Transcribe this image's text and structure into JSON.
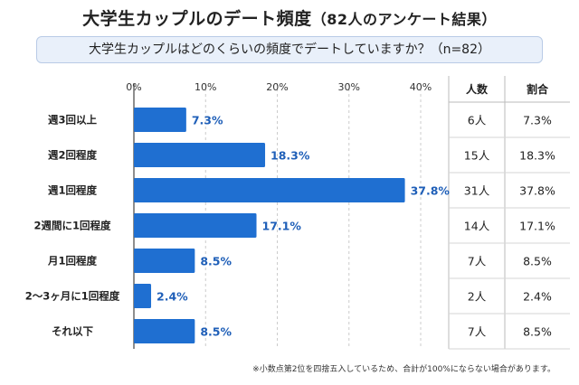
{
  "header": {
    "title": "大学生カップルのデート頻度",
    "subtitle": "（82人のアンケート結果）",
    "question": "大学生カップルはどのくらいの頻度でデートしていますか？（n=82）"
  },
  "table": {
    "col_count": "人数",
    "col_ratio": "割合"
  },
  "footnote": "※小数点第2位を四捨五入しているため、合計が100%にならない場合があります。",
  "colors": {
    "bar": "#1f6fd1",
    "label": "#1f5fb8",
    "grid": "#cccccc"
  },
  "chart_data": {
    "type": "bar",
    "orientation": "horizontal",
    "categories": [
      "週3回以上",
      "週2回程度",
      "週1回程度",
      "2週間に1回程度",
      "月1回程度",
      "2〜3ヶ月に1回程度",
      "それ以下"
    ],
    "values": [
      7.3,
      18.3,
      37.8,
      17.1,
      8.5,
      2.4,
      8.5
    ],
    "value_labels": [
      "7.3%",
      "18.3%",
      "37.8%",
      "17.1%",
      "8.5%",
      "2.4%",
      "8.5%"
    ],
    "counts": [
      "6人",
      "15人",
      "31人",
      "14人",
      "7人",
      "2人",
      "7人"
    ],
    "ratios": [
      "7.3%",
      "18.3%",
      "37.8%",
      "17.1%",
      "8.5%",
      "2.4%",
      "8.5%"
    ],
    "xticks": [
      0,
      10,
      20,
      30,
      40
    ],
    "xtick_labels": [
      "0%",
      "10%",
      "20%",
      "30%",
      "40%"
    ],
    "xlim": [
      0,
      40
    ],
    "grid": true
  }
}
